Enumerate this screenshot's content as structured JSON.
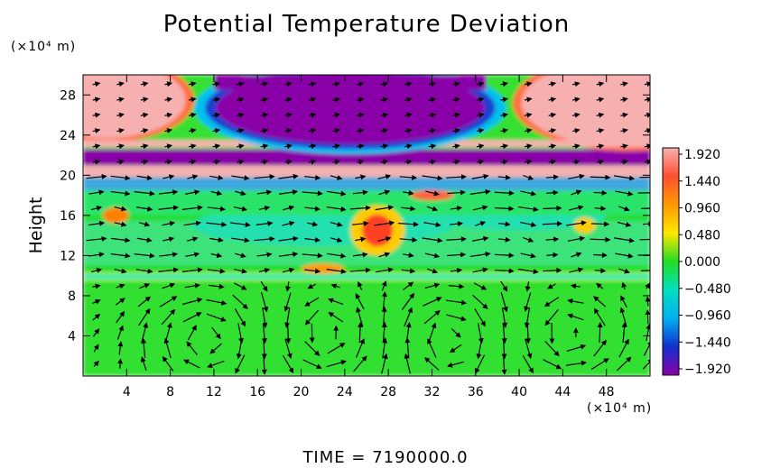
{
  "chart_data": {
    "type": "heatmap",
    "title": "Potential Temperature Deviation",
    "ylabel": "Height",
    "xunit": "(×10⁴ m)",
    "yunit": "(×10⁴ m)",
    "xlim": [
      0,
      52
    ],
    "ylim": [
      0,
      30
    ],
    "xticks": [
      4,
      8,
      12,
      16,
      20,
      24,
      28,
      32,
      36,
      40,
      44,
      48
    ],
    "yticks": [
      4,
      8,
      12,
      16,
      20,
      24,
      28
    ],
    "colorbar": {
      "levels": [
        1.92,
        1.44,
        0.96,
        0.48,
        0.0,
        -0.48,
        -0.96,
        -1.44,
        -1.92
      ],
      "labels": [
        "1.920",
        "1.440",
        "0.960",
        "0.480",
        "0.000",
        "−0.480",
        "−0.960",
        "−1.440",
        "−1.920"
      ],
      "range": [
        -1.92,
        1.92
      ],
      "colors": [
        "#f7b0b0",
        "#ff5030",
        "#ff9900",
        "#ffe800",
        "#22dd22",
        "#00e0c0",
        "#00b0f0",
        "#1030d0",
        "#8a00a8"
      ]
    },
    "field_regions": [
      {
        "region": "upper-left lobe",
        "x": [
          0,
          9
        ],
        "y": [
          24,
          30
        ],
        "value": 1.92
      },
      {
        "region": "upper-center dome",
        "x": [
          12,
          37
        ],
        "y": [
          23,
          30
        ],
        "value": -1.92
      },
      {
        "region": "upper-right lobe",
        "x": [
          40,
          52
        ],
        "y": [
          23,
          30
        ],
        "value": 1.92
      },
      {
        "region": "layer",
        "x": [
          0,
          52
        ],
        "y": [
          21,
          22.5
        ],
        "value": -1.92
      },
      {
        "region": "layer",
        "x": [
          0,
          52
        ],
        "y": [
          20,
          21
        ],
        "value": 1.92
      },
      {
        "region": "band",
        "x": [
          0,
          52
        ],
        "y": [
          16,
          19
        ],
        "value": 0.0
      },
      {
        "region": "band",
        "x": [
          0,
          52
        ],
        "y": [
          9.5,
          10.5
        ],
        "value": -0.48
      },
      {
        "region": "lower domain",
        "x": [
          0,
          52
        ],
        "y": [
          0,
          9
        ],
        "value": 0.0
      }
    ],
    "vector_field": {
      "description": "wind arrows",
      "cells": [
        {
          "x": 12,
          "y": 4,
          "circulation": "counterclockwise"
        },
        {
          "x": 22,
          "y": 4,
          "circulation": "clockwise"
        },
        {
          "x": 34,
          "y": 4,
          "circulation": "counterclockwise"
        },
        {
          "x": 44,
          "y": 4,
          "circulation": "clockwise"
        }
      ]
    }
  },
  "footer": {
    "time_label": "TIME",
    "time_value": "7190000.0"
  }
}
